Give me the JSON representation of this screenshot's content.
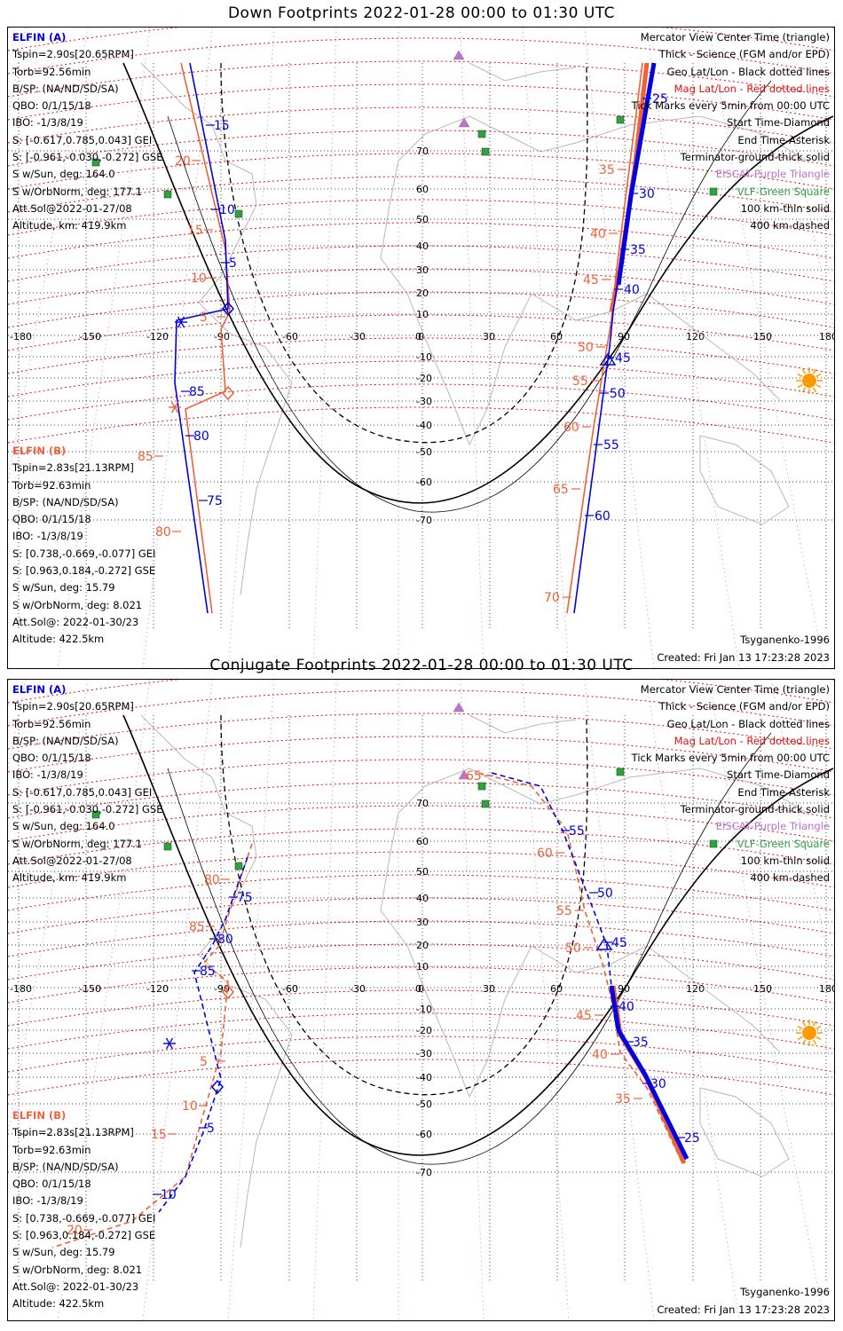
{
  "panels": [
    {
      "title": "Down Footprints 2022-01-28 00:00 to 01:30 UTC",
      "elfin_a": {
        "header": "ELFIN (A)",
        "lines": [
          "Tspin=2.90s[20.65RPM]",
          "Torb=92.56min",
          "B/SP: (NA/ND/SD/SA)",
          "QBO: 0/1/15/18",
          "IBO: -1/3/8/19",
          "S: [-0.617,0.785,0.043] GEI",
          "S: [-0.961,-0.030,-0.272] GSE",
          "S w/Sun, deg: 164.0",
          "S w/OrbNorm, deg: 177.1",
          "Att.Sol@2022-01-27/08",
          "Altitude, km: 419.9km"
        ]
      },
      "elfin_b": {
        "header": "ELFIN (B)",
        "lines": [
          "Tspin=2.83s[21.13RPM]",
          "Torb=92.63min",
          "B/SP: (NA/ND/SD/SA)",
          "QBO: 0/1/15/18",
          "IBO: -1/3/8/19",
          "S: [0.738,-0.669,-0.077] GEI",
          "S: [0.963,0.184,-0.272] GSE",
          "S w/Sun, deg: 15.79",
          "S w/OrbNorm, deg: 8.021",
          "Att.Sol@: 2022-01-30/23",
          "Altitude: 422.5km"
        ]
      },
      "legend": [
        "Mercator View Center Time (triangle)",
        "Thick - Science (FGM and/or EPD)",
        "Geo Lat/Lon - Black dotted lines",
        "Mag Lat/Lon - Red dotted lines",
        "Tick Marks every 5min from 00:00 UTC",
        "Start Time-Diamond",
        "End Time-Asterisk",
        "Terminator-ground-thick solid",
        "EISCAT-Purple Triangle",
        "VLF-Green Square",
        "100 km-thin solid",
        "400 km-dashed"
      ],
      "model": "Tsyganenko-1996",
      "created": "Created: Fri Jan 13 17:23:28 2023",
      "track_a_labels": [
        {
          "t": "15"
        },
        {
          "t": "10"
        },
        {
          "t": "5"
        },
        {
          "t": "85"
        },
        {
          "t": "80"
        },
        {
          "t": "75"
        },
        {
          "t": "25"
        },
        {
          "t": "30"
        },
        {
          "t": "35"
        },
        {
          "t": "40"
        },
        {
          "t": "45"
        },
        {
          "t": "50"
        },
        {
          "t": "55"
        },
        {
          "t": "60"
        }
      ],
      "track_b_labels": [
        {
          "t": "20"
        },
        {
          "t": "15"
        },
        {
          "t": "10"
        },
        {
          "t": "5"
        },
        {
          "t": "85"
        },
        {
          "t": "80"
        },
        {
          "t": "35"
        },
        {
          "t": "40"
        },
        {
          "t": "45"
        },
        {
          "t": "50"
        },
        {
          "t": "55"
        },
        {
          "t": "60"
        },
        {
          "t": "65"
        },
        {
          "t": "70"
        }
      ]
    },
    {
      "title": "Conjugate Footprints 2022-01-28 00:00 to 01:30 UTC",
      "elfin_a": {
        "header": "ELFIN (A)",
        "lines": [
          "Tspin=2.90s[20.65RPM]",
          "Torb=92.56min",
          "B/SP: (NA/ND/SD/SA)",
          "QBO: 0/1/15/18",
          "IBO: -1/3/8/19",
          "S: [-0.617,0.785,0.043] GEI",
          "S: [-0.961,-0.030,-0.272] GSE",
          "S w/Sun, deg: 164.0",
          "S w/OrbNorm, deg: 177.1",
          "Att.Sol@2022-01-27/08",
          "Altitude, km: 419.9km"
        ]
      },
      "elfin_b": {
        "header": "ELFIN (B)",
        "lines": [
          "Tspin=2.83s[21.13RPM]",
          "Torb=92.63min",
          "B/SP: (NA/ND/SD/SA)",
          "QBO: 0/1/15/18",
          "IBO: -1/3/8/19",
          "S: [0.738,-0.669,-0.077] GEI",
          "S: [0.963,0.184,-0.272] GSE",
          "S w/Sun, deg: 15.79",
          "S w/OrbNorm, deg: 8.021",
          "Att.Sol@: 2022-01-30/23",
          "Altitude: 422.5km"
        ]
      },
      "legend": [
        "Mercator View Center Time (triangle)",
        "Thick - Science (FGM and/or EPD)",
        "Geo Lat/Lon - Black dotted lines",
        "Mag Lat/Lon - Red dotted lines",
        "Tick Marks every 5min from 00:00 UTC",
        "Start Time-Diamond",
        "End Time-Asterisk",
        "Terminator-ground-thick solid",
        "EISCAT-Purple Triangle",
        "VLF-Green Square",
        "100 km-thin solid",
        "400 km-dashed"
      ],
      "model": "Tsyganenko-1996",
      "created": "Created: Fri Jan 13 17:23:28 2023",
      "track_a_labels": [
        {
          "t": "75"
        },
        {
          "t": "80"
        },
        {
          "t": "85"
        },
        {
          "t": "5"
        },
        {
          "t": "10"
        },
        {
          "t": "55"
        },
        {
          "t": "50"
        },
        {
          "t": "45"
        },
        {
          "t": "40"
        },
        {
          "t": "35"
        },
        {
          "t": "30"
        },
        {
          "t": "25"
        }
      ],
      "track_b_labels": [
        {
          "t": "80"
        },
        {
          "t": "85"
        },
        {
          "t": "5"
        },
        {
          "t": "10"
        },
        {
          "t": "15"
        },
        {
          "t": "20"
        },
        {
          "t": "65"
        },
        {
          "t": "60"
        },
        {
          "t": "55"
        },
        {
          "t": "50"
        },
        {
          "t": "45"
        },
        {
          "t": "40"
        },
        {
          "t": "35"
        }
      ]
    }
  ],
  "axes": {
    "lon_labels": [
      "-180",
      "-150",
      "-120",
      "-90",
      "-60",
      "-30",
      "0",
      "30",
      "60",
      "90",
      "120",
      "150",
      "180"
    ],
    "lat_labels": [
      "70",
      "60",
      "50",
      "40",
      "30",
      "20",
      "10",
      "0",
      "-10",
      "-20",
      "-30",
      "-40",
      "-50",
      "-60",
      "-70"
    ]
  },
  "colors": {
    "elfin_a": "#0000e0",
    "elfin_b": "#f0603a",
    "mag_grid": "#e01010",
    "geo_grid": "#000000",
    "eiscat": "#c070d0",
    "vlf": "#30a040",
    "sun": "#ff9900"
  }
}
